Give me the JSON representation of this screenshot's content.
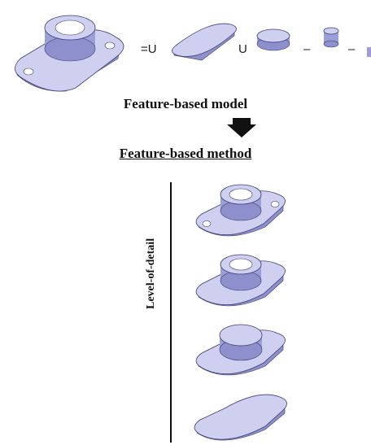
{
  "equation": {
    "operators": [
      "=U",
      "U",
      "–",
      "–"
    ]
  },
  "titles": {
    "model": "Feature-based model",
    "method": "Feature-based method"
  },
  "lod_axis": {
    "label": "Level-of-detail"
  },
  "colors": {
    "part_top": "#cfd0ef",
    "part_side": "#9c9ed6",
    "part_dark": "#6f72ad",
    "edge": "#3c3e77"
  }
}
